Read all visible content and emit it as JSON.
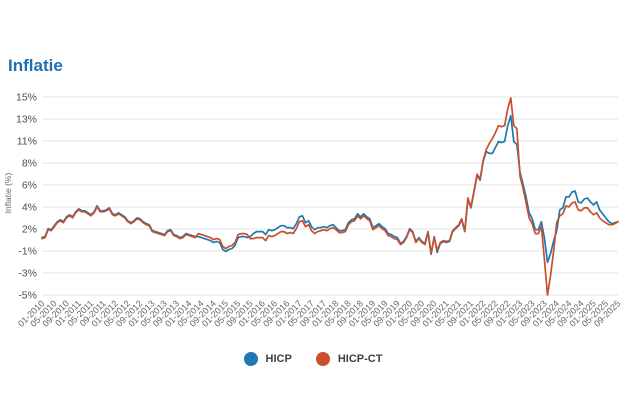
{
  "page": {
    "title": "Inflatie"
  },
  "y_axis": {
    "label": "Inflatie (%)"
  },
  "legend": [
    {
      "label": "HICP",
      "color": "#1f77b4"
    },
    {
      "label": "HICP-CT",
      "color": "#c8502a"
    }
  ],
  "colors": {
    "title": "#1f6fb2",
    "grid": "#e4e4e4",
    "hicp": "#1f77b4",
    "hicp_ct": "#c8502a"
  },
  "chart_data": {
    "type": "line",
    "title": "Inflatie",
    "xlabel": "",
    "ylabel": "Inflatie (%)",
    "x_frequency": "monthly",
    "x_start": "01-2010",
    "x_end": "09-2025",
    "ylim": [
      -5,
      15
    ],
    "grid": true,
    "legend_position": "bottom",
    "y_tick_labels": [
      "15%",
      "13%",
      "11%",
      "8%",
      "6%",
      "4%",
      "2%",
      "-1%",
      "-3%",
      "-5%"
    ],
    "x_tick_labels": [
      "01-2010",
      "05-2010",
      "09-2010",
      "01-2011",
      "05-2011",
      "09-2011",
      "01-2012",
      "05-2012",
      "09-2012",
      "01-2013",
      "05-2013",
      "09-2013",
      "01-2014",
      "05-2014",
      "09-2014",
      "01-2015",
      "05-2015",
      "09-2015",
      "01-2016",
      "05-2016",
      "09-2016",
      "01-2017",
      "05-2017",
      "09-2017",
      "01-2018",
      "05-2018",
      "09-2018",
      "01-2019",
      "05-2019",
      "09-2019",
      "01-2020",
      "05-2020",
      "09-2020",
      "01-2021",
      "05-2021",
      "09-2021",
      "01-2022",
      "05-2022",
      "09-2022",
      "01-2023",
      "05-2023",
      "09-2023",
      "01-2024",
      "05-2024",
      "09-2024",
      "01-2025",
      "05-2025",
      "09-2025"
    ],
    "x_ticks_every_n_months": 4,
    "series": [
      {
        "name": "HICP",
        "color": "#1f77b4",
        "values": [
          0.8,
          0.9,
          1.7,
          1.6,
          2.0,
          2.4,
          2.6,
          2.4,
          2.9,
          3.1,
          2.9,
          3.4,
          3.7,
          3.5,
          3.5,
          3.3,
          3.1,
          3.4,
          4.0,
          3.5,
          3.5,
          3.6,
          3.8,
          3.2,
          3.1,
          3.3,
          3.1,
          2.9,
          2.5,
          2.3,
          2.5,
          2.8,
          2.7,
          2.4,
          2.2,
          2.1,
          1.5,
          1.4,
          1.3,
          1.2,
          1.1,
          1.5,
          1.6,
          1.1,
          1.0,
          0.8,
          0.9,
          1.2,
          1.1,
          1.0,
          0.9,
          0.9,
          0.8,
          0.7,
          0.6,
          0.5,
          0.3,
          0.4,
          0.3,
          -0.4,
          -0.6,
          -0.4,
          -0.3,
          0.0,
          0.8,
          0.9,
          0.9,
          0.8,
          0.9,
          1.2,
          1.4,
          1.4,
          1.4,
          1.1,
          1.6,
          1.5,
          1.6,
          1.8,
          2.0,
          2.0,
          1.8,
          1.8,
          1.7,
          2.2,
          2.9,
          3.0,
          2.3,
          2.5,
          1.9,
          1.6,
          1.8,
          1.8,
          1.9,
          1.8,
          2.0,
          2.1,
          1.8,
          1.5,
          1.5,
          1.6,
          2.3,
          2.6,
          2.7,
          3.2,
          2.9,
          3.2,
          2.9,
          2.7,
          1.8,
          2.0,
          2.2,
          1.9,
          1.7,
          1.2,
          1.1,
          0.9,
          0.8,
          0.2,
          0.4,
          0.9,
          1.7,
          1.4,
          0.4,
          0.8,
          0.4,
          0.2,
          1.4,
          -0.9,
          0.9,
          -0.7,
          0.2,
          0.4,
          0.3,
          0.4,
          1.4,
          1.7,
          2.0,
          2.6,
          1.4,
          4.7,
          3.8,
          5.4,
          7.1,
          6.6,
          8.5,
          9.5,
          9.3,
          9.3,
          9.9,
          10.5,
          10.4,
          10.5,
          12.1,
          13.1,
          10.5,
          10.2,
          7.4,
          6.2,
          4.9,
          3.3,
          2.7,
          1.6,
          1.6,
          2.4,
          0.7,
          -1.7,
          -0.8,
          0.5,
          1.5,
          3.6,
          3.8,
          4.9,
          4.9,
          5.4,
          5.5,
          4.4,
          4.3,
          4.7,
          4.8,
          4.4,
          4.1,
          4.4,
          3.6,
          3.2,
          2.8,
          2.4,
          2.2,
          2.3,
          2.4
        ]
      },
      {
        "name": "HICP-CT",
        "color": "#c8502a",
        "values": [
          0.7,
          0.8,
          1.6,
          1.5,
          1.9,
          2.3,
          2.5,
          2.3,
          2.8,
          3.0,
          2.8,
          3.3,
          3.6,
          3.4,
          3.4,
          3.2,
          3.0,
          3.3,
          3.9,
          3.4,
          3.4,
          3.5,
          3.7,
          3.1,
          3.0,
          3.2,
          3.0,
          2.8,
          2.4,
          2.2,
          2.4,
          2.7,
          2.6,
          2.3,
          2.1,
          2.0,
          1.4,
          1.3,
          1.2,
          1.1,
          1.0,
          1.4,
          1.5,
          1.0,
          0.9,
          0.7,
          0.8,
          1.1,
          1.0,
          0.9,
          0.8,
          1.2,
          1.1,
          1.0,
          0.9,
          0.8,
          0.6,
          0.7,
          0.6,
          -0.1,
          -0.3,
          -0.1,
          0.0,
          0.3,
          1.1,
          1.2,
          1.2,
          1.1,
          0.7,
          0.7,
          0.8,
          0.8,
          0.8,
          0.5,
          1.0,
          0.9,
          1.0,
          1.2,
          1.4,
          1.4,
          1.2,
          1.3,
          1.2,
          1.7,
          2.4,
          2.5,
          1.9,
          2.1,
          1.5,
          1.2,
          1.4,
          1.5,
          1.6,
          1.5,
          1.7,
          1.8,
          1.6,
          1.3,
          1.3,
          1.4,
          2.1,
          2.4,
          2.5,
          3.0,
          2.7,
          3.0,
          2.7,
          2.5,
          1.6,
          1.8,
          2.0,
          1.7,
          1.5,
          1.0,
          0.9,
          0.7,
          0.6,
          0.1,
          0.3,
          0.8,
          1.6,
          1.3,
          0.3,
          0.7,
          0.3,
          0.1,
          1.3,
          -0.8,
          0.8,
          -0.5,
          0.3,
          0.5,
          0.4,
          0.5,
          1.5,
          1.8,
          2.1,
          2.7,
          1.5,
          4.8,
          3.9,
          5.5,
          7.2,
          6.7,
          8.6,
          9.7,
          10.3,
          10.8,
          11.4,
          12.1,
          12.0,
          12.1,
          13.8,
          14.9,
          12.1,
          11.8,
          7.0,
          5.8,
          4.3,
          2.8,
          2.2,
          1.2,
          1.2,
          1.9,
          -1.5,
          -5.0,
          -3.0,
          -0.5,
          2.3,
          3.0,
          3.2,
          4.0,
          3.9,
          4.3,
          4.4,
          3.6,
          3.5,
          3.8,
          3.8,
          3.4,
          3.1,
          3.3,
          2.8,
          2.5,
          2.3,
          2.1,
          2.1,
          2.2,
          2.4
        ]
      }
    ]
  }
}
